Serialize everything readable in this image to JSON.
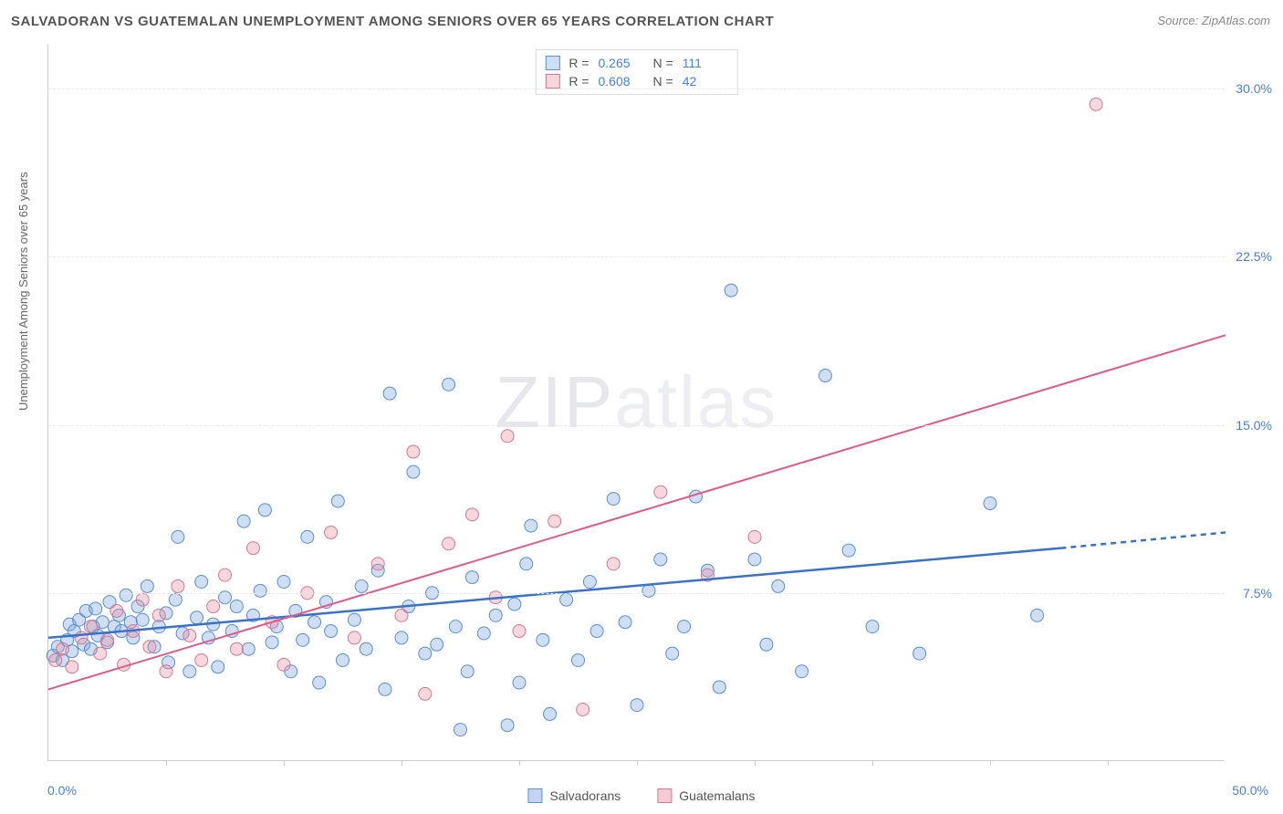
{
  "title": "SALVADORAN VS GUATEMALAN UNEMPLOYMENT AMONG SENIORS OVER 65 YEARS CORRELATION CHART",
  "source": "Source: ZipAtlas.com",
  "y_axis_label": "Unemployment Among Seniors over 65 years",
  "watermark": "ZIPatlas",
  "chart": {
    "type": "scatter",
    "xlim": [
      0,
      50
    ],
    "ylim": [
      0,
      32
    ],
    "x_start_label": "0.0%",
    "x_end_label": "50.0%",
    "y_ticks": [
      7.5,
      15.0,
      22.5,
      30.0
    ],
    "y_tick_labels": [
      "7.5%",
      "15.0%",
      "22.5%",
      "30.0%"
    ],
    "x_tick_positions": [
      5,
      10,
      15,
      20,
      25,
      30,
      35,
      40,
      45
    ],
    "background_color": "#ffffff",
    "grid_color": "#e8e8e8",
    "plot_border_color": "#cccccc",
    "marker_radius": 7,
    "marker_stroke_width": 1,
    "series": [
      {
        "name": "Salvadorans",
        "color_fill": "rgba(120,160,220,0.35)",
        "color_stroke": "#5a8fd0",
        "R": "0.265",
        "N": "111",
        "trend": {
          "x1": 0,
          "y1": 5.5,
          "x2": 43,
          "y2": 9.5,
          "dash_after_x": 43,
          "x2_dash": 50,
          "y2_dash": 10.2,
          "stroke": "#3a72c8",
          "width": 2.5
        },
        "points": [
          [
            0.2,
            4.7
          ],
          [
            0.4,
            5.1
          ],
          [
            0.6,
            4.5
          ],
          [
            0.8,
            5.4
          ],
          [
            0.9,
            6.1
          ],
          [
            1.0,
            4.9
          ],
          [
            1.1,
            5.8
          ],
          [
            1.3,
            6.3
          ],
          [
            1.5,
            5.2
          ],
          [
            1.6,
            6.7
          ],
          [
            1.8,
            5.0
          ],
          [
            1.9,
            6.0
          ],
          [
            2.0,
            6.8
          ],
          [
            2.1,
            5.6
          ],
          [
            2.3,
            6.2
          ],
          [
            2.5,
            5.3
          ],
          [
            2.6,
            7.1
          ],
          [
            2.8,
            6.0
          ],
          [
            3.0,
            6.5
          ],
          [
            3.1,
            5.8
          ],
          [
            3.3,
            7.4
          ],
          [
            3.5,
            6.2
          ],
          [
            3.6,
            5.5
          ],
          [
            3.8,
            6.9
          ],
          [
            4.0,
            6.3
          ],
          [
            4.2,
            7.8
          ],
          [
            4.5,
            5.1
          ],
          [
            4.7,
            6.0
          ],
          [
            5.0,
            6.6
          ],
          [
            5.1,
            4.4
          ],
          [
            5.4,
            7.2
          ],
          [
            5.5,
            10.0
          ],
          [
            5.7,
            5.7
          ],
          [
            6.0,
            4.0
          ],
          [
            6.3,
            6.4
          ],
          [
            6.5,
            8.0
          ],
          [
            6.8,
            5.5
          ],
          [
            7.0,
            6.1
          ],
          [
            7.2,
            4.2
          ],
          [
            7.5,
            7.3
          ],
          [
            7.8,
            5.8
          ],
          [
            8.0,
            6.9
          ],
          [
            8.3,
            10.7
          ],
          [
            8.5,
            5.0
          ],
          [
            8.7,
            6.5
          ],
          [
            9.0,
            7.6
          ],
          [
            9.2,
            11.2
          ],
          [
            9.5,
            5.3
          ],
          [
            9.7,
            6.0
          ],
          [
            10.0,
            8.0
          ],
          [
            10.3,
            4.0
          ],
          [
            10.5,
            6.7
          ],
          [
            10.8,
            5.4
          ],
          [
            11.0,
            10.0
          ],
          [
            11.3,
            6.2
          ],
          [
            11.5,
            3.5
          ],
          [
            11.8,
            7.1
          ],
          [
            12.0,
            5.8
          ],
          [
            12.3,
            11.6
          ],
          [
            12.5,
            4.5
          ],
          [
            13.0,
            6.3
          ],
          [
            13.3,
            7.8
          ],
          [
            13.5,
            5.0
          ],
          [
            14.0,
            8.5
          ],
          [
            14.3,
            3.2
          ],
          [
            14.5,
            16.4
          ],
          [
            15.0,
            5.5
          ],
          [
            15.3,
            6.9
          ],
          [
            15.5,
            12.9
          ],
          [
            16.0,
            4.8
          ],
          [
            16.3,
            7.5
          ],
          [
            16.5,
            5.2
          ],
          [
            17.0,
            16.8
          ],
          [
            17.3,
            6.0
          ],
          [
            17.8,
            4.0
          ],
          [
            18.0,
            8.2
          ],
          [
            18.5,
            5.7
          ],
          [
            19.0,
            6.5
          ],
          [
            19.5,
            1.6
          ],
          [
            19.8,
            7.0
          ],
          [
            20.0,
            3.5
          ],
          [
            20.3,
            8.8
          ],
          [
            20.5,
            10.5
          ],
          [
            21.0,
            5.4
          ],
          [
            21.3,
            2.1
          ],
          [
            22.0,
            7.2
          ],
          [
            22.5,
            4.5
          ],
          [
            23.0,
            8.0
          ],
          [
            23.3,
            5.8
          ],
          [
            24.0,
            11.7
          ],
          [
            24.5,
            6.2
          ],
          [
            25.0,
            2.5
          ],
          [
            25.5,
            7.6
          ],
          [
            26.0,
            9.0
          ],
          [
            26.5,
            4.8
          ],
          [
            27.0,
            6.0
          ],
          [
            27.5,
            11.8
          ],
          [
            28.0,
            8.5
          ],
          [
            28.5,
            3.3
          ],
          [
            29.0,
            21.0
          ],
          [
            30.0,
            9.0
          ],
          [
            30.5,
            5.2
          ],
          [
            31.0,
            7.8
          ],
          [
            32.0,
            4.0
          ],
          [
            33.0,
            17.2
          ],
          [
            34.0,
            9.4
          ],
          [
            35.0,
            6.0
          ],
          [
            37.0,
            4.8
          ],
          [
            40.0,
            11.5
          ],
          [
            42.0,
            6.5
          ],
          [
            17.5,
            1.4
          ]
        ]
      },
      {
        "name": "Guatemalans",
        "color_fill": "rgba(230,140,160,0.35)",
        "color_stroke": "#d07a95",
        "R": "0.608",
        "N": "42",
        "trend": {
          "x1": 0,
          "y1": 3.2,
          "x2": 50,
          "y2": 19.0,
          "stroke": "#e05a88",
          "width": 2
        },
        "points": [
          [
            0.3,
            4.5
          ],
          [
            0.6,
            5.0
          ],
          [
            1.0,
            4.2
          ],
          [
            1.4,
            5.5
          ],
          [
            1.8,
            6.0
          ],
          [
            2.2,
            4.8
          ],
          [
            2.5,
            5.4
          ],
          [
            2.9,
            6.7
          ],
          [
            3.2,
            4.3
          ],
          [
            3.6,
            5.8
          ],
          [
            4.0,
            7.2
          ],
          [
            4.3,
            5.1
          ],
          [
            4.7,
            6.5
          ],
          [
            5.0,
            4.0
          ],
          [
            5.5,
            7.8
          ],
          [
            6.0,
            5.6
          ],
          [
            6.5,
            4.5
          ],
          [
            7.0,
            6.9
          ],
          [
            7.5,
            8.3
          ],
          [
            8.0,
            5.0
          ],
          [
            8.7,
            9.5
          ],
          [
            9.5,
            6.2
          ],
          [
            10.0,
            4.3
          ],
          [
            11.0,
            7.5
          ],
          [
            12.0,
            10.2
          ],
          [
            13.0,
            5.5
          ],
          [
            14.0,
            8.8
          ],
          [
            15.0,
            6.5
          ],
          [
            15.5,
            13.8
          ],
          [
            16.0,
            3.0
          ],
          [
            17.0,
            9.7
          ],
          [
            18.0,
            11.0
          ],
          [
            19.0,
            7.3
          ],
          [
            19.5,
            14.5
          ],
          [
            20.0,
            5.8
          ],
          [
            21.5,
            10.7
          ],
          [
            22.7,
            2.3
          ],
          [
            24.0,
            8.8
          ],
          [
            26.0,
            12.0
          ],
          [
            28.0,
            8.3
          ],
          [
            30.0,
            10.0
          ],
          [
            44.5,
            29.3
          ]
        ]
      }
    ]
  },
  "legend_bottom": [
    {
      "name": "Salvadorans",
      "fill": "rgba(120,160,220,0.45)",
      "stroke": "#5a8fd0"
    },
    {
      "name": "Guatemalans",
      "fill": "rgba(230,140,160,0.45)",
      "stroke": "#d07a95"
    }
  ]
}
